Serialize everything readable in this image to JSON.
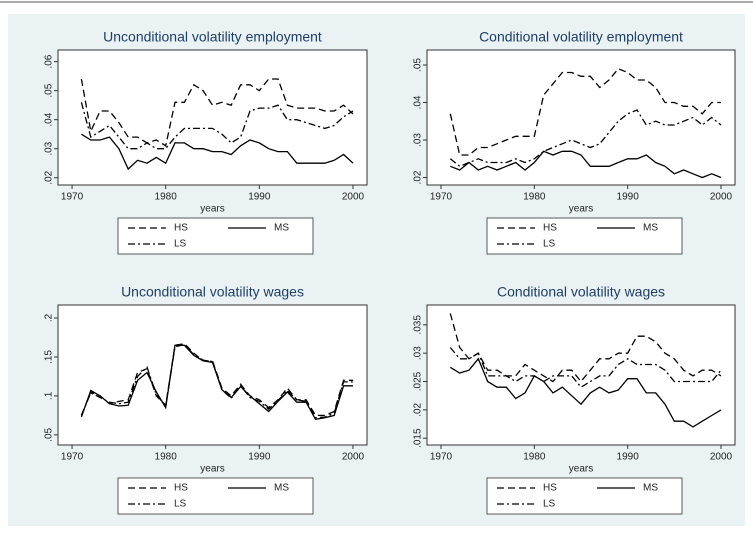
{
  "chart_data": [
    {
      "type": "line",
      "title": "Unconditional volatility employment",
      "x_label": "years",
      "x": [
        1971,
        1972,
        1973,
        1974,
        1975,
        1976,
        1977,
        1978,
        1979,
        1980,
        1981,
        1982,
        1983,
        1984,
        1985,
        1986,
        1987,
        1988,
        1989,
        1990,
        1991,
        1992,
        1993,
        1994,
        1995,
        1996,
        1997,
        1998,
        1999,
        2000
      ],
      "xlim": [
        1968.5,
        2001.5
      ],
      "xticks": [
        1970,
        1980,
        1990,
        2000
      ],
      "ylim": [
        0.0175,
        0.064
      ],
      "yticks": [
        {
          "value": 0.02,
          "label": ".02"
        },
        {
          "value": 0.03,
          "label": ".03"
        },
        {
          "value": 0.04,
          "label": ".04"
        },
        {
          "value": 0.05,
          "label": ".05"
        },
        {
          "value": 0.06,
          "label": ".06"
        }
      ],
      "series": [
        {
          "name": "HS",
          "color": "#000000",
          "dash": "dashed",
          "values": [
            0.054,
            0.036,
            0.043,
            0.043,
            0.039,
            0.034,
            0.034,
            0.032,
            0.033,
            0.031,
            0.046,
            0.046,
            0.052,
            0.05,
            0.045,
            0.046,
            0.045,
            0.052,
            0.052,
            0.05,
            0.054,
            0.054,
            0.045,
            0.044,
            0.044,
            0.044,
            0.043,
            0.043,
            0.045,
            0.042
          ]
        },
        {
          "name": "MS",
          "color": "#000000",
          "dash": "solid",
          "values": [
            0.035,
            0.033,
            0.033,
            0.034,
            0.03,
            0.023,
            0.026,
            0.025,
            0.027,
            0.025,
            0.032,
            0.032,
            0.03,
            0.03,
            0.029,
            0.029,
            0.028,
            0.031,
            0.033,
            0.032,
            0.03,
            0.029,
            0.029,
            0.025,
            0.025,
            0.025,
            0.025,
            0.026,
            0.028,
            0.025
          ]
        },
        {
          "name": "LS",
          "color": "#000000",
          "dash": "dashdot",
          "values": [
            0.046,
            0.034,
            0.036,
            0.038,
            0.034,
            0.03,
            0.03,
            0.032,
            0.03,
            0.03,
            0.034,
            0.037,
            0.037,
            0.037,
            0.037,
            0.035,
            0.032,
            0.034,
            0.043,
            0.044,
            0.044,
            0.045,
            0.04,
            0.04,
            0.039,
            0.038,
            0.037,
            0.038,
            0.041,
            0.043
          ]
        }
      ]
    },
    {
      "type": "line",
      "title": "Conditional volatility employment",
      "x_label": "years",
      "x": [
        1971,
        1972,
        1973,
        1974,
        1975,
        1976,
        1977,
        1978,
        1979,
        1980,
        1981,
        1982,
        1983,
        1984,
        1985,
        1986,
        1987,
        1988,
        1989,
        1990,
        1991,
        1992,
        1993,
        1994,
        1995,
        1996,
        1997,
        1998,
        1999,
        2000
      ],
      "xlim": [
        1968.5,
        2001.5
      ],
      "xticks": [
        1970,
        1980,
        1990,
        2000
      ],
      "ylim": [
        0.018,
        0.054
      ],
      "yticks": [
        {
          "value": 0.02,
          "label": ".02"
        },
        {
          "value": 0.03,
          "label": ".03"
        },
        {
          "value": 0.04,
          "label": ".04"
        },
        {
          "value": 0.05,
          "label": ".05"
        }
      ],
      "series": [
        {
          "name": "HS",
          "color": "#000000",
          "dash": "dashed",
          "values": [
            0.037,
            0.026,
            0.026,
            0.028,
            0.028,
            0.029,
            0.03,
            0.031,
            0.031,
            0.031,
            0.042,
            0.045,
            0.048,
            0.048,
            0.047,
            0.047,
            0.044,
            0.046,
            0.049,
            0.048,
            0.046,
            0.046,
            0.044,
            0.04,
            0.04,
            0.039,
            0.039,
            0.037,
            0.04,
            0.04
          ]
        },
        {
          "name": "MS",
          "color": "#000000",
          "dash": "solid",
          "values": [
            0.023,
            0.022,
            0.024,
            0.022,
            0.023,
            0.022,
            0.023,
            0.024,
            0.022,
            0.024,
            0.027,
            0.026,
            0.027,
            0.027,
            0.026,
            0.023,
            0.023,
            0.023,
            0.024,
            0.025,
            0.025,
            0.026,
            0.024,
            0.023,
            0.021,
            0.022,
            0.021,
            0.02,
            0.021,
            0.02
          ]
        },
        {
          "name": "LS",
          "color": "#000000",
          "dash": "dashdot",
          "values": [
            0.025,
            0.023,
            0.024,
            0.025,
            0.024,
            0.024,
            0.024,
            0.025,
            0.024,
            0.025,
            0.027,
            0.028,
            0.029,
            0.03,
            0.029,
            0.028,
            0.029,
            0.032,
            0.035,
            0.037,
            0.038,
            0.034,
            0.035,
            0.034,
            0.034,
            0.035,
            0.036,
            0.034,
            0.036,
            0.034
          ]
        }
      ]
    },
    {
      "type": "line",
      "title": "Unconditional volatility wages",
      "x_label": "years",
      "x": [
        1971,
        1972,
        1973,
        1974,
        1975,
        1976,
        1977,
        1978,
        1979,
        1980,
        1981,
        1982,
        1983,
        1984,
        1985,
        1986,
        1987,
        1988,
        1989,
        1990,
        1991,
        1992,
        1993,
        1994,
        1995,
        1996,
        1997,
        1998,
        1999,
        2000
      ],
      "xlim": [
        1968.5,
        2001.5
      ],
      "xticks": [
        1970,
        1980,
        1990,
        2000
      ],
      "ylim": [
        0.037,
        0.2167
      ],
      "yticks": [
        {
          "value": 0.05,
          "label": ".05"
        },
        {
          "value": 0.1,
          "label": ".1"
        },
        {
          "value": 0.15,
          "label": ".15"
        },
        {
          "value": 0.2,
          "label": ".2"
        }
      ],
      "series": [
        {
          "name": "HS",
          "color": "#000000",
          "dash": "dashed",
          "values": [
            0.075,
            0.105,
            0.1,
            0.09,
            0.093,
            0.095,
            0.13,
            0.135,
            0.1,
            0.088,
            0.165,
            0.167,
            0.155,
            0.145,
            0.145,
            0.11,
            0.1,
            0.115,
            0.1,
            0.095,
            0.085,
            0.095,
            0.11,
            0.095,
            0.095,
            0.075,
            0.075,
            0.08,
            0.12,
            0.12
          ]
        },
        {
          "name": "MS",
          "color": "#000000",
          "dash": "solid",
          "values": [
            0.073,
            0.107,
            0.1,
            0.09,
            0.087,
            0.088,
            0.12,
            0.13,
            0.105,
            0.085,
            0.165,
            0.165,
            0.152,
            0.145,
            0.143,
            0.108,
            0.098,
            0.112,
            0.1,
            0.09,
            0.08,
            0.093,
            0.105,
            0.092,
            0.092,
            0.07,
            0.072,
            0.075,
            0.113,
            0.113
          ]
        },
        {
          "name": "LS",
          "color": "#000000",
          "dash": "dashdot",
          "values": [
            0.075,
            0.104,
            0.098,
            0.092,
            0.09,
            0.092,
            0.125,
            0.137,
            0.102,
            0.087,
            0.163,
            0.166,
            0.153,
            0.146,
            0.144,
            0.108,
            0.097,
            0.113,
            0.098,
            0.093,
            0.083,
            0.094,
            0.107,
            0.095,
            0.093,
            0.072,
            0.073,
            0.078,
            0.118,
            0.118
          ]
        }
      ]
    },
    {
      "type": "line",
      "title": "Conditional volatility wages",
      "x_label": "years",
      "x": [
        1971,
        1972,
        1973,
        1974,
        1975,
        1976,
        1977,
        1978,
        1979,
        1980,
        1981,
        1982,
        1983,
        1984,
        1985,
        1986,
        1987,
        1988,
        1989,
        1990,
        1991,
        1992,
        1993,
        1994,
        1995,
        1996,
        1997,
        1998,
        1999,
        2000
      ],
      "xlim": [
        1968.5,
        2001.5
      ],
      "xticks": [
        1970,
        1980,
        1990,
        2000
      ],
      "ylim": [
        0.0138,
        0.0385
      ],
      "yticks": [
        {
          "value": 0.015,
          "label": ".015"
        },
        {
          "value": 0.02,
          "label": ".02"
        },
        {
          "value": 0.025,
          "label": ".025"
        },
        {
          "value": 0.03,
          "label": ".03"
        },
        {
          "value": 0.035,
          "label": ".035"
        }
      ],
      "series": [
        {
          "name": "HS",
          "color": "#000000",
          "dash": "dashed",
          "values": [
            0.037,
            0.031,
            0.029,
            0.03,
            0.027,
            0.027,
            0.026,
            0.026,
            0.028,
            0.027,
            0.026,
            0.025,
            0.027,
            0.027,
            0.025,
            0.027,
            0.029,
            0.029,
            0.03,
            0.03,
            0.033,
            0.033,
            0.032,
            0.03,
            0.029,
            0.027,
            0.026,
            0.027,
            0.027,
            0.026
          ]
        },
        {
          "name": "MS",
          "color": "#000000",
          "dash": "solid",
          "values": [
            0.0275,
            0.0265,
            0.027,
            0.029,
            0.025,
            0.024,
            0.024,
            0.022,
            0.023,
            0.026,
            0.025,
            0.023,
            0.024,
            0.0225,
            0.021,
            0.023,
            0.024,
            0.023,
            0.0235,
            0.0255,
            0.0255,
            0.023,
            0.023,
            0.021,
            0.018,
            0.018,
            0.017,
            0.018,
            0.019,
            0.02
          ]
        },
        {
          "name": "LS",
          "color": "#000000",
          "dash": "dashdot",
          "values": [
            0.031,
            0.029,
            0.029,
            0.03,
            0.026,
            0.026,
            0.026,
            0.025,
            0.026,
            0.026,
            0.025,
            0.026,
            0.026,
            0.026,
            0.024,
            0.025,
            0.026,
            0.026,
            0.028,
            0.029,
            0.028,
            0.028,
            0.028,
            0.027,
            0.025,
            0.025,
            0.025,
            0.025,
            0.025,
            0.027
          ]
        }
      ]
    }
  ]
}
